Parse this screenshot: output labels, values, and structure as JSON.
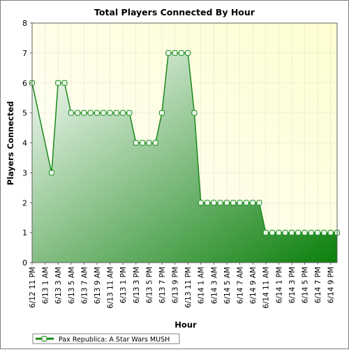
{
  "chart_data": {
    "type": "area",
    "title": "Total Players Connected By Hour",
    "xlabel": "Hour",
    "ylabel": "Players Connected",
    "ylim": [
      0,
      8
    ],
    "yticks": [
      0,
      1,
      2,
      3,
      4,
      5,
      6,
      7,
      8
    ],
    "grid": true,
    "legend_position": "bottom-left",
    "colors": {
      "line": "#1a8a1a",
      "fill_dark": "#0b7f0b",
      "fill_light": "#ffffff",
      "bg_light": "#ffffff",
      "bg_yellow": "#fefed0",
      "grid": "#b0b0b0",
      "marker_fill": "#e8f5e8"
    },
    "x_tick_labels": [
      "6/12 11 PM",
      "6/13 1 AM",
      "6/13 3 AM",
      "6/13 5 AM",
      "6/13 7 AM",
      "6/13 9 AM",
      "6/13 11 AM",
      "6/13 1 PM",
      "6/13 3 PM",
      "6/13 5 PM",
      "6/13 7 PM",
      "6/13 9 PM",
      "6/13 11 PM",
      "6/14 1 AM",
      "6/14 3 AM",
      "6/14 5 AM",
      "6/14 7 AM",
      "6/14 9 AM",
      "6/14 11 AM",
      "6/14 1 PM",
      "6/14 3 PM",
      "6/14 5 PM",
      "6/14 7 PM",
      "6/14 9 PM"
    ],
    "series": [
      {
        "name": "Pax Republica: A Star Wars MUSH",
        "points": [
          {
            "x": "6/12 11 PM",
            "y": 6
          },
          {
            "x": "6/13 2 AM",
            "y": 3
          },
          {
            "x": "6/13 3 AM",
            "y": 6
          },
          {
            "x": "6/13 4 AM",
            "y": 6
          },
          {
            "x": "6/13 5 AM",
            "y": 5
          },
          {
            "x": "6/13 6 AM",
            "y": 5
          },
          {
            "x": "6/13 7 AM",
            "y": 5
          },
          {
            "x": "6/13 8 AM",
            "y": 5
          },
          {
            "x": "6/13 9 AM",
            "y": 5
          },
          {
            "x": "6/13 10 AM",
            "y": 5
          },
          {
            "x": "6/13 11 AM",
            "y": 5
          },
          {
            "x": "6/13 12 PM",
            "y": 5
          },
          {
            "x": "6/13 1 PM",
            "y": 5
          },
          {
            "x": "6/13 2 PM",
            "y": 5
          },
          {
            "x": "6/13 3 PM",
            "y": 4
          },
          {
            "x": "6/13 4 PM",
            "y": 4
          },
          {
            "x": "6/13 5 PM",
            "y": 4
          },
          {
            "x": "6/13 6 PM",
            "y": 4
          },
          {
            "x": "6/13 7 PM",
            "y": 5
          },
          {
            "x": "6/13 8 PM",
            "y": 7
          },
          {
            "x": "6/13 9 PM",
            "y": 7
          },
          {
            "x": "6/13 10 PM",
            "y": 7
          },
          {
            "x": "6/13 11 PM",
            "y": 7
          },
          {
            "x": "6/14 12 AM",
            "y": 5
          },
          {
            "x": "6/14 1 AM",
            "y": 2
          },
          {
            "x": "6/14 2 AM",
            "y": 2
          },
          {
            "x": "6/14 3 AM",
            "y": 2
          },
          {
            "x": "6/14 4 AM",
            "y": 2
          },
          {
            "x": "6/14 5 AM",
            "y": 2
          },
          {
            "x": "6/14 6 AM",
            "y": 2
          },
          {
            "x": "6/14 7 AM",
            "y": 2
          },
          {
            "x": "6/14 8 AM",
            "y": 2
          },
          {
            "x": "6/14 9 AM",
            "y": 2
          },
          {
            "x": "6/14 10 AM",
            "y": 2
          },
          {
            "x": "6/14 11 AM",
            "y": 1
          },
          {
            "x": "6/14 12 PM",
            "y": 1
          },
          {
            "x": "6/14 1 PM",
            "y": 1
          },
          {
            "x": "6/14 2 PM",
            "y": 1
          },
          {
            "x": "6/14 3 PM",
            "y": 1
          },
          {
            "x": "6/14 4 PM",
            "y": 1
          },
          {
            "x": "6/14 5 PM",
            "y": 1
          },
          {
            "x": "6/14 6 PM",
            "y": 1
          },
          {
            "x": "6/14 7 PM",
            "y": 1
          },
          {
            "x": "6/14 8 PM",
            "y": 1
          },
          {
            "x": "6/14 9 PM",
            "y": 1
          },
          {
            "x": "6/14 10 PM",
            "y": 1
          }
        ]
      }
    ]
  }
}
